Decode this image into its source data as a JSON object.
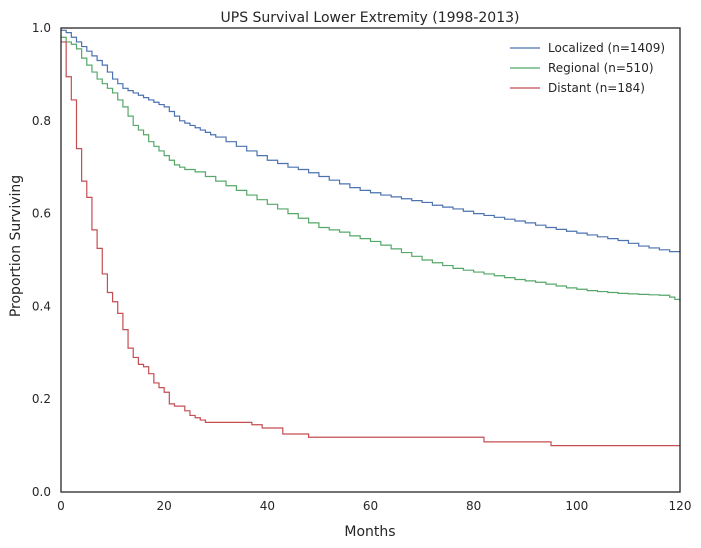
{
  "chart_data": {
    "type": "line",
    "step": true,
    "title": "UPS Survival Lower Extremity (1998-2013)",
    "xlabel": "Months",
    "ylabel": "Proportion Surviving",
    "xlim": [
      0,
      120
    ],
    "ylim": [
      0.0,
      1.0
    ],
    "xticks": [
      0,
      20,
      40,
      60,
      80,
      100,
      120
    ],
    "yticks": [
      0.0,
      0.2,
      0.4,
      0.6,
      0.8,
      1.0
    ],
    "xtick_labels": [
      "0",
      "20",
      "40",
      "60",
      "80",
      "100",
      "120"
    ],
    "ytick_labels": [
      "0.0",
      "0.2",
      "0.4",
      "0.6",
      "0.8",
      "1.0"
    ],
    "grid": false,
    "legend": "top-right",
    "series": [
      {
        "name": "Localized (n=1409)",
        "color": "#4c72b0",
        "x": [
          0,
          1,
          2,
          3,
          4,
          5,
          6,
          7,
          8,
          9,
          10,
          11,
          12,
          13,
          14,
          15,
          16,
          17,
          18,
          19,
          20,
          21,
          22,
          23,
          24,
          25,
          26,
          27,
          28,
          29,
          30,
          32,
          34,
          36,
          38,
          40,
          42,
          44,
          46,
          48,
          50,
          52,
          54,
          56,
          58,
          60,
          62,
          64,
          66,
          68,
          70,
          72,
          74,
          76,
          78,
          80,
          82,
          84,
          86,
          88,
          90,
          92,
          94,
          96,
          98,
          100,
          102,
          104,
          106,
          108,
          110,
          112,
          114,
          116,
          118,
          120
        ],
        "y": [
          0.995,
          0.99,
          0.98,
          0.97,
          0.96,
          0.95,
          0.94,
          0.93,
          0.92,
          0.905,
          0.89,
          0.88,
          0.87,
          0.865,
          0.86,
          0.855,
          0.85,
          0.845,
          0.84,
          0.835,
          0.83,
          0.82,
          0.81,
          0.8,
          0.795,
          0.79,
          0.785,
          0.78,
          0.775,
          0.77,
          0.765,
          0.755,
          0.745,
          0.735,
          0.725,
          0.715,
          0.708,
          0.7,
          0.695,
          0.688,
          0.68,
          0.672,
          0.664,
          0.656,
          0.65,
          0.645,
          0.64,
          0.636,
          0.632,
          0.628,
          0.624,
          0.618,
          0.614,
          0.61,
          0.605,
          0.6,
          0.596,
          0.592,
          0.588,
          0.584,
          0.58,
          0.575,
          0.57,
          0.566,
          0.562,
          0.558,
          0.554,
          0.55,
          0.546,
          0.542,
          0.536,
          0.53,
          0.526,
          0.522,
          0.518,
          0.516
        ]
      },
      {
        "name": "Regional (n=510)",
        "color": "#55a868",
        "x": [
          0,
          1,
          2,
          3,
          4,
          5,
          6,
          7,
          8,
          9,
          10,
          11,
          12,
          13,
          14,
          15,
          16,
          17,
          18,
          19,
          20,
          21,
          22,
          23,
          24,
          26,
          28,
          30,
          32,
          34,
          36,
          38,
          40,
          42,
          44,
          46,
          48,
          50,
          52,
          54,
          56,
          58,
          60,
          62,
          64,
          66,
          68,
          70,
          72,
          74,
          76,
          78,
          80,
          82,
          84,
          86,
          88,
          90,
          92,
          94,
          96,
          98,
          100,
          102,
          104,
          106,
          108,
          110,
          112,
          114,
          116,
          118,
          119,
          120
        ],
        "y": [
          0.98,
          0.97,
          0.965,
          0.955,
          0.935,
          0.92,
          0.905,
          0.89,
          0.88,
          0.87,
          0.86,
          0.845,
          0.83,
          0.81,
          0.79,
          0.78,
          0.77,
          0.755,
          0.745,
          0.735,
          0.725,
          0.715,
          0.705,
          0.7,
          0.695,
          0.69,
          0.68,
          0.67,
          0.66,
          0.65,
          0.64,
          0.63,
          0.62,
          0.61,
          0.6,
          0.59,
          0.58,
          0.57,
          0.565,
          0.56,
          0.552,
          0.546,
          0.54,
          0.532,
          0.524,
          0.516,
          0.508,
          0.5,
          0.494,
          0.488,
          0.482,
          0.478,
          0.474,
          0.47,
          0.466,
          0.462,
          0.458,
          0.455,
          0.452,
          0.448,
          0.444,
          0.44,
          0.437,
          0.434,
          0.432,
          0.43,
          0.428,
          0.427,
          0.426,
          0.425,
          0.424,
          0.42,
          0.415,
          0.41
        ]
      },
      {
        "name": "Distant (n=184)",
        "color": "#c44e52",
        "x": [
          0,
          1,
          2,
          3,
          4,
          5,
          6,
          7,
          8,
          9,
          10,
          11,
          12,
          13,
          14,
          15,
          16,
          17,
          18,
          19,
          20,
          21,
          22,
          24,
          25,
          26,
          27,
          28,
          30,
          37,
          39,
          43,
          48,
          82,
          95,
          120
        ],
        "y": [
          0.97,
          0.895,
          0.845,
          0.74,
          0.67,
          0.635,
          0.565,
          0.525,
          0.47,
          0.43,
          0.41,
          0.385,
          0.35,
          0.31,
          0.29,
          0.275,
          0.27,
          0.255,
          0.235,
          0.225,
          0.215,
          0.19,
          0.185,
          0.175,
          0.165,
          0.16,
          0.155,
          0.15,
          0.15,
          0.145,
          0.138,
          0.125,
          0.118,
          0.108,
          0.1,
          0.1
        ]
      }
    ]
  }
}
